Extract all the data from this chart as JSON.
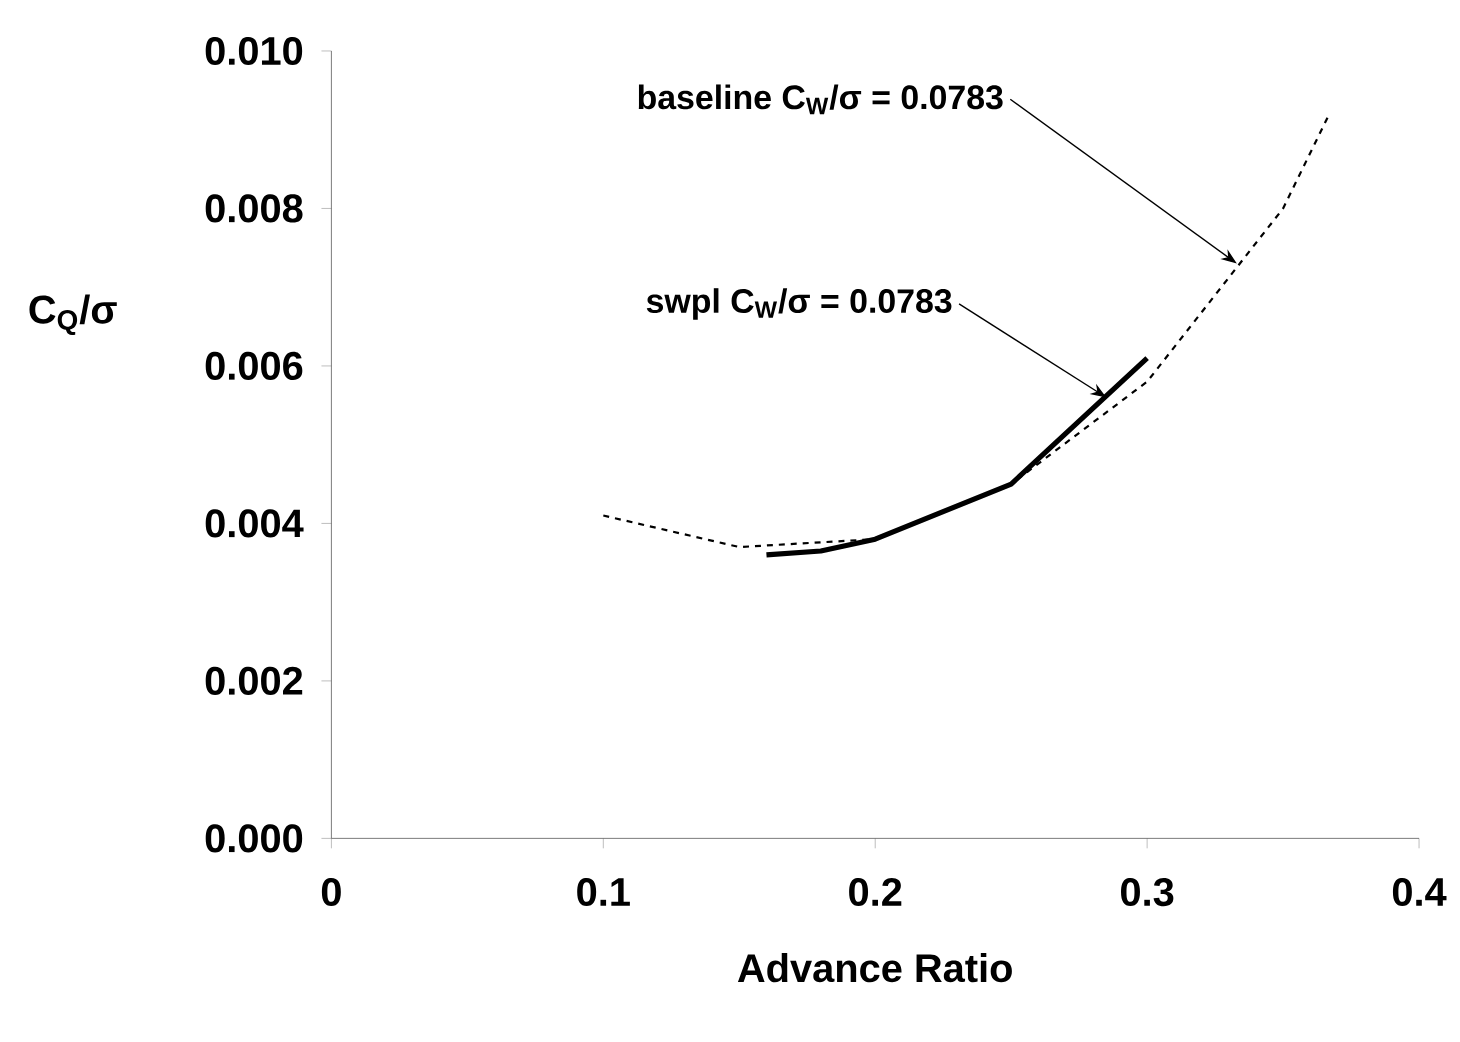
{
  "chart_data": {
    "type": "line",
    "xlabel": "Advance Ratio",
    "ylabel": "C$_{Q}$/σ",
    "series": [
      {
        "name": null,
        "color": "#000000",
        "line_style": "dashed",
        "x": [
          0.1,
          0.15,
          0.2,
          0.25,
          0.3,
          0.35,
          0.367
        ],
        "values": [
          0.0041,
          0.0037,
          0.0038,
          0.0045,
          0.0058,
          0.008,
          0.0092
        ]
      },
      {
        "name": null,
        "color": "#000000",
        "line_style": "solid",
        "x": [
          0.16,
          0.18,
          0.2,
          0.25,
          0.3
        ],
        "values": [
          0.0036,
          0.00365,
          0.0038,
          0.0045,
          0.0061
        ]
      }
    ],
    "annotations": [
      {
        "text": "baseline C$_{W}$/σ = 0.0783",
        "x": 0.333,
        "y": 0.0073
      },
      {
        "text": "swpl C$_{W}$/σ = 0.0783",
        "x": 0.285,
        "y": 0.0056
      }
    ],
    "xlim": [
      0,
      0.4
    ],
    "ylim": [
      0,
      0.01
    ],
    "xticks": [
      0,
      0.1,
      0.2,
      0.3,
      0.4
    ],
    "yticks": [
      {
        "value": 0,
        "label": "0.000"
      },
      {
        "value": 0.002,
        "label": "0.002"
      },
      {
        "value": 0.004,
        "label": "0.004"
      },
      {
        "value": 0.006,
        "label": "0.006"
      },
      {
        "value": 0.008,
        "label": "0.008"
      },
      {
        "value": 0.01,
        "label": "0.010"
      }
    ],
    "grid": false,
    "marker": "none"
  }
}
